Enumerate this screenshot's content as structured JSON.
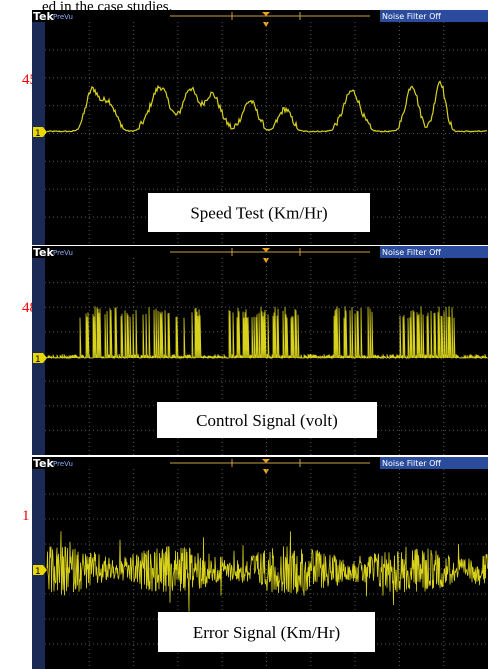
{
  "heading_fragment": "ed in the case studies.",
  "panels": [
    {
      "brand": "Tek",
      "mode": "PreVu",
      "filter_status": "Noise Filter Off",
      "channel_marker": "1",
      "caption": "Speed Test (Km/Hr)",
      "side_fragment": "45"
    },
    {
      "brand": "Tek",
      "mode": "PreVu",
      "filter_status": "Noise Filter Off",
      "channel_marker": "1",
      "caption": "Control Signal (volt)",
      "side_fragment": "48"
    },
    {
      "brand": "Tek",
      "mode": "PreVu",
      "filter_status": "Noise Filter Off",
      "channel_marker": "1",
      "caption": "Error Signal (Km/Hr)",
      "side_fragment": "1"
    }
  ]
}
